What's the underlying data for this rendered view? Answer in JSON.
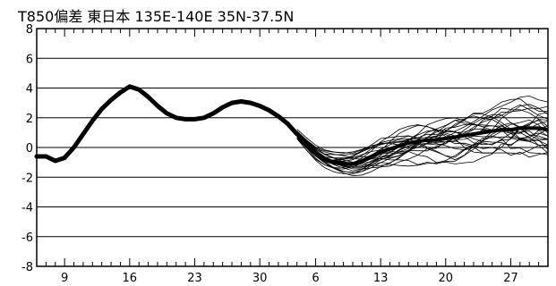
{
  "chart_data": {
    "type": "line",
    "title": "T850偏差  東日本  135E-140E  35N-37.5N",
    "xlabel": "",
    "ylabel": "",
    "ylim": [
      -8,
      8
    ],
    "y_ticks": [
      {
        "value": 8,
        "label": "8"
      },
      {
        "value": 6,
        "label": "6"
      },
      {
        "value": 4,
        "label": "4"
      },
      {
        "value": 2,
        "label": "2"
      },
      {
        "value": 0,
        "label": "0"
      },
      {
        "value": -2,
        "label": "-2"
      },
      {
        "value": -4,
        "label": "-4"
      },
      {
        "value": -6,
        "label": "-6"
      },
      {
        "value": -8,
        "label": "-8"
      }
    ],
    "x_ticks": [
      {
        "day": 3,
        "label": "9"
      },
      {
        "day": 10,
        "label": "16"
      },
      {
        "day": 17,
        "label": "23"
      },
      {
        "day": 24,
        "label": "30"
      },
      {
        "day": 30,
        "label": "6"
      },
      {
        "day": 37,
        "label": "13"
      },
      {
        "day": 44,
        "label": "20"
      },
      {
        "day": 51,
        "label": "27"
      }
    ],
    "xlim": [
      0,
      55
    ],
    "grid": true,
    "observed": {
      "name": "",
      "x": [
        0,
        1,
        2,
        3,
        4,
        5,
        6,
        7,
        8,
        9,
        10,
        11,
        12,
        13,
        14,
        15,
        16,
        17,
        18,
        19,
        20,
        21,
        22,
        23,
        24,
        25,
        26,
        27,
        28
      ],
      "y": [
        -0.6,
        -0.6,
        -0.9,
        -0.7,
        0.0,
        0.9,
        1.8,
        2.6,
        3.2,
        3.7,
        4.1,
        3.9,
        3.4,
        2.8,
        2.3,
        2.0,
        1.9,
        1.9,
        2.0,
        2.3,
        2.7,
        3.0,
        3.1,
        3.0,
        2.8,
        2.5,
        2.1,
        1.6,
        0.9
      ]
    },
    "ensemble_mean": {
      "name": "",
      "x": [
        28,
        29,
        30,
        31,
        32,
        33,
        34,
        35,
        36,
        37,
        38,
        39,
        40,
        41,
        42,
        43,
        44,
        45,
        46,
        47,
        48,
        49,
        50,
        51,
        52,
        53,
        54,
        55
      ],
      "y": [
        0.9,
        0.2,
        -0.4,
        -0.8,
        -1.0,
        -1.1,
        -1.1,
        -0.9,
        -0.6,
        -0.3,
        -0.1,
        0.1,
        0.3,
        0.4,
        0.5,
        0.5,
        0.6,
        0.7,
        0.8,
        0.9,
        1.0,
        1.1,
        1.2,
        1.2,
        1.3,
        1.3,
        1.3,
        1.2
      ]
    },
    "ensemble": {
      "members": 25,
      "start_day": 28,
      "end_day": 55,
      "spread_start": 0.3,
      "spread_max": 1.7
    }
  }
}
